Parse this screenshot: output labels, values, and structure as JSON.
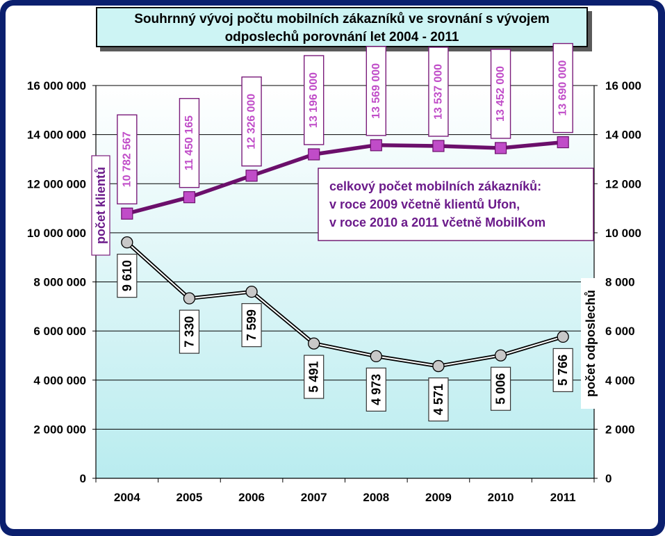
{
  "title": [
    "Souhrnný vývoj počtu  mobilních zákazníků ve srovnání s vývojem",
    "odposlechů porovnání let 2004 - 2011"
  ],
  "colors": {
    "frame": "#0b1f6e",
    "plot_top": "#ffffff",
    "plot_bottom": "#b9ecef",
    "customers_line": "#6b0f6b",
    "customers_marker": "#c04cc8",
    "customers_label_border": "#7a1b7a",
    "intercepts_line": "#000000",
    "intercepts_marker": "#c8c8c8",
    "legend_text": "#6b1a8a"
  },
  "chart_data": {
    "type": "line",
    "categories": [
      "2004",
      "2005",
      "2006",
      "2007",
      "2008",
      "2009",
      "2010",
      "2011"
    ],
    "series": [
      {
        "name": "počet klientů",
        "axis": "left",
        "values": [
          10782567,
          11450165,
          12326000,
          13196000,
          13569000,
          13537000,
          13452000,
          13690000
        ],
        "labels": [
          "10 782 567",
          "11 450 165",
          "12 326 000",
          "13 196 000",
          "13 569 000",
          "13 537 000",
          "13 452 000",
          "13 690 000"
        ]
      },
      {
        "name": "počet odposlechů",
        "axis": "right",
        "values": [
          9610,
          7330,
          7599,
          5491,
          4973,
          4571,
          5006,
          5766
        ],
        "labels": [
          "9 610",
          "7 330",
          "7 599",
          "5 491",
          "4 973",
          "4 571",
          "5 006",
          "5 766"
        ]
      }
    ],
    "y_left": {
      "label": "počet klientů",
      "ylim": [
        0,
        16000000
      ],
      "ticks": [
        "0",
        "2 000 000",
        "4 000 000",
        "6 000 000",
        "8 000 000",
        "10 000 000",
        "12 000 000",
        "14 000 000",
        "16 000 000"
      ]
    },
    "y_right": {
      "label": "počet odposlechů",
      "ylim": [
        0,
        16000
      ],
      "ticks": [
        "0",
        "2 000",
        "4 000",
        "6 000",
        "8 000",
        "10 000",
        "12 000",
        "14 000",
        "16 000"
      ]
    },
    "annotation": [
      "celkový počet mobilních zákazníků:",
      "v roce 2009 včetně klientů Ufon,",
      "v roce 2010 a 2011 včetně MobilKom"
    ],
    "grid": true,
    "legend": "none"
  }
}
